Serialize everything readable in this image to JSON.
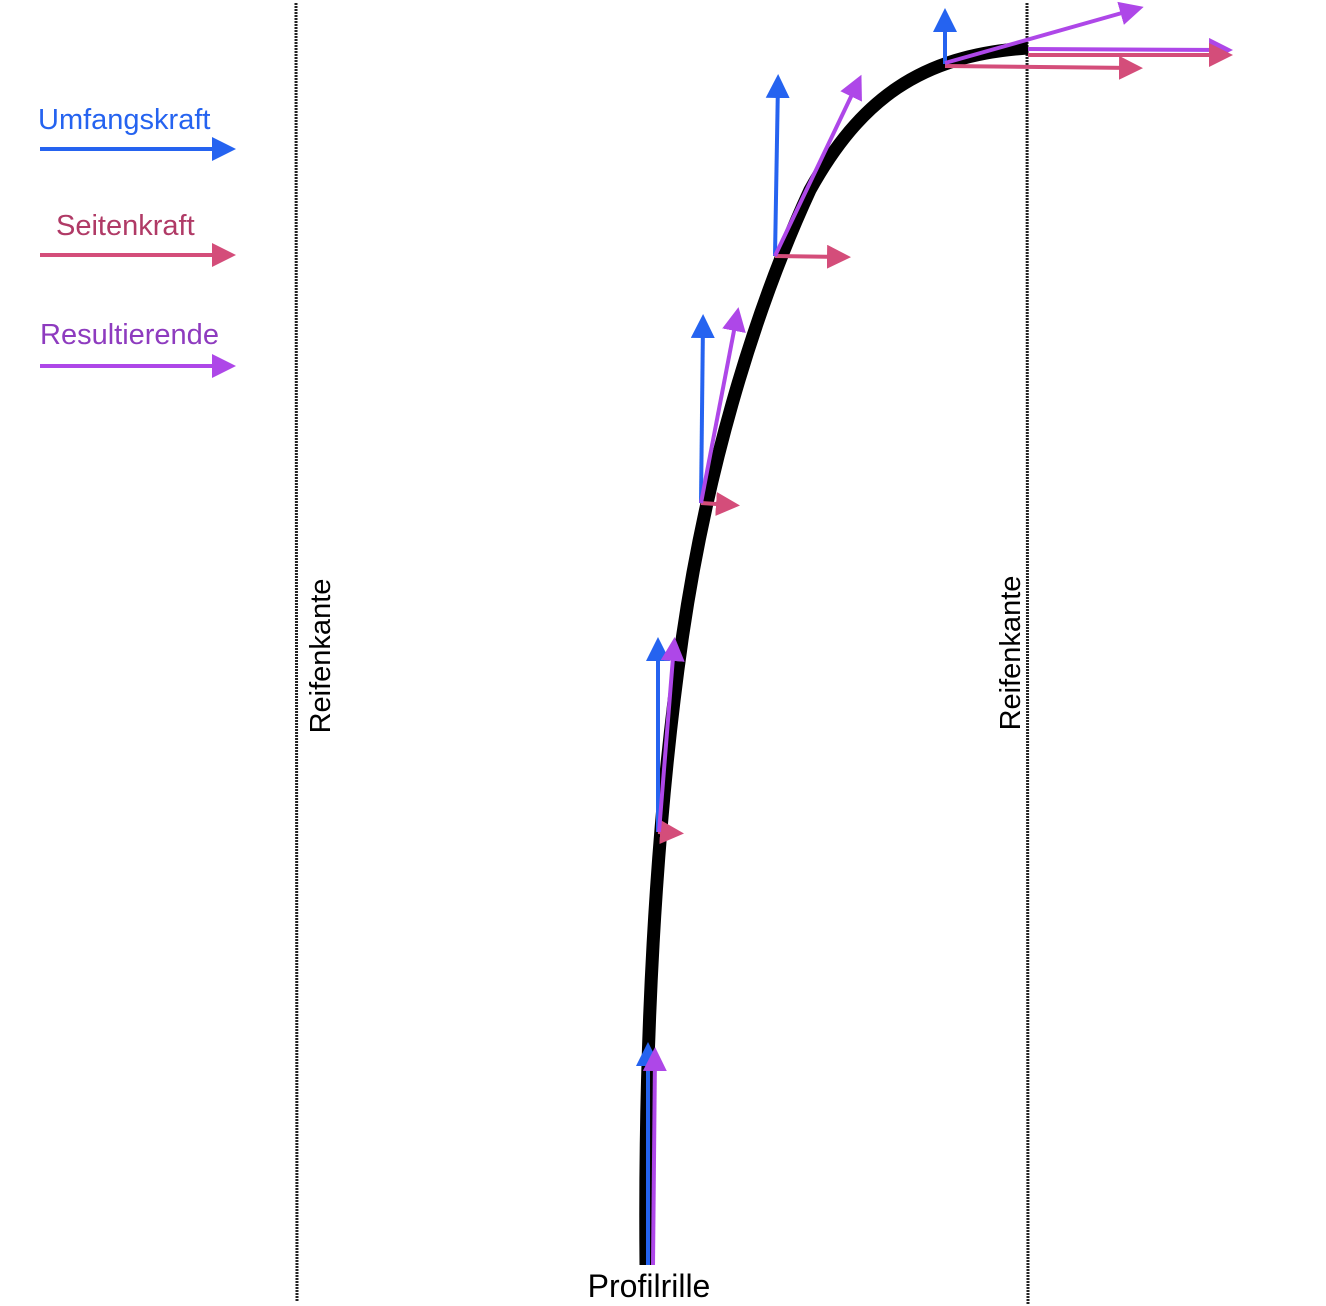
{
  "legend": {
    "items": [
      {
        "label": "Umfangskraft",
        "color": "#2563f0",
        "text_color": "#2563f0"
      },
      {
        "label": "Seitenkraft",
        "color": "#d44d7a",
        "text_color": "#b03a66"
      },
      {
        "label": "Resultierende",
        "color": "#ae47e8",
        "text_color": "#8e3bbf"
      }
    ]
  },
  "labels": {
    "left_edge": "Reifenkante",
    "right_edge": "Reifenkante",
    "groove": "Profilrille"
  },
  "colors": {
    "curve": "#000000",
    "edge_line": "#222222"
  }
}
